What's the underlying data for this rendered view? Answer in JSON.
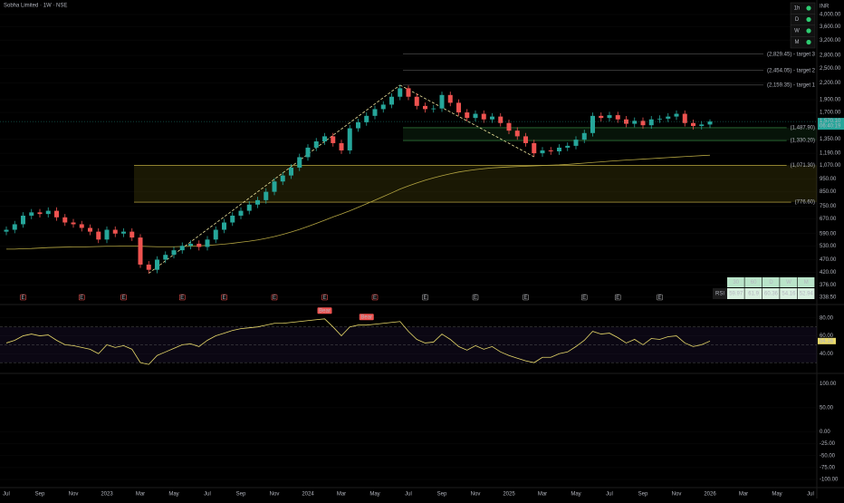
{
  "chart_data": [
    {
      "type": "candlestick",
      "title": "Sobha Limited · 1W · NSE",
      "currency": "INR",
      "log_scale": true,
      "categories": [
        "Jul",
        null,
        null,
        null,
        "Sep",
        null,
        null,
        null,
        "Nov",
        null,
        null,
        null,
        "2023",
        null,
        null,
        null,
        "Mar",
        null,
        null,
        null,
        "May",
        null,
        null,
        null,
        "Jul",
        null,
        null,
        null,
        "Sep",
        null,
        null,
        null,
        "Nov",
        null,
        null,
        null,
        "2024",
        null,
        null,
        null,
        "Mar",
        null,
        null,
        null,
        "May",
        null,
        null,
        null,
        "Jul",
        null,
        null,
        null,
        "Sep",
        null,
        null,
        null,
        "Nov",
        null,
        null,
        null,
        "2025",
        null,
        null,
        null,
        "Mar",
        null,
        null,
        null,
        "May",
        null,
        null,
        null,
        "Jul",
        null,
        null,
        null,
        "Sep",
        null,
        null,
        null,
        "Nov",
        null,
        null,
        null,
        "2026",
        null,
        null,
        null,
        "Mar",
        null,
        null,
        null,
        "May",
        null,
        null,
        null,
        "Jul"
      ],
      "open": [
        600,
        610,
        640,
        690,
        710,
        700,
        720,
        680,
        650,
        640,
        620,
        600,
        560,
        610,
        590,
        600,
        570,
        450,
        430,
        470,
        490,
        510,
        530,
        540,
        525,
        560,
        610,
        650,
        690,
        720,
        760,
        790,
        850,
        930,
        980,
        1050,
        1150,
        1250,
        1320,
        1380,
        1300,
        1220,
        1480,
        1560,
        1650,
        1750,
        1820,
        1950,
        2100,
        1950,
        1800,
        1750,
        1760,
        1980,
        1850,
        1700,
        1620,
        1680,
        1600,
        1640,
        1550,
        1450,
        1380,
        1300,
        1190,
        1220,
        1210,
        1250,
        1270,
        1340,
        1420,
        1650,
        1620,
        1660,
        1600,
        1540,
        1580,
        1520,
        1600,
        1610,
        1640,
        1680,
        1550,
        1510,
        1530,
        null,
        null,
        null,
        null,
        null,
        null,
        null,
        null,
        null,
        null,
        null,
        null
      ],
      "high": [
        628,
        659,
        711,
        731,
        731,
        742,
        742,
        700,
        670,
        659,
        639,
        618,
        628,
        628,
        618,
        618,
        587,
        464,
        484,
        505,
        525,
        546,
        556,
        556,
        577,
        628,
        670,
        711,
        742,
        783,
        814,
        876,
        958,
        1009,
        1082,
        1185,
        1288,
        1360,
        1421,
        1421,
        1339,
        1524,
        1607,
        1700,
        1803,
        1875,
        2009,
        2159,
        2150,
        2009,
        1854,
        1813,
        2039,
        2039,
        1906,
        1751,
        1730,
        1730,
        1689,
        1689,
        1597,
        1494,
        1421,
        1339,
        1257,
        1257,
        1288,
        1308,
        1380,
        1463,
        1700,
        1700,
        1710,
        1710,
        1648,
        1627,
        1627,
        1648,
        1658,
        1689,
        1730,
        1730,
        1597,
        1576,
        1600,
        null,
        null,
        null,
        null,
        null,
        null,
        null,
        null,
        null,
        null,
        null,
        null
      ],
      "low": [
        582,
        592,
        621,
        669,
        679,
        679,
        660,
        631,
        621,
        601,
        582,
        543,
        543,
        572,
        572,
        553,
        437,
        417,
        417,
        456,
        475,
        495,
        514,
        509,
        509,
        543,
        592,
        631,
        669,
        698,
        737,
        766,
        825,
        902,
        951,
        1019,
        1116,
        1213,
        1280,
        1261,
        1183,
        1183,
        1436,
        1513,
        1601,
        1698,
        1765,
        1892,
        1892,
        1746,
        1698,
        1698,
        1707,
        1795,
        1649,
        1571,
        1571,
        1552,
        1552,
        1504,
        1407,
        1339,
        1261,
        1154,
        1154,
        1174,
        1174,
        1213,
        1232,
        1300,
        1377,
        1571,
        1571,
        1552,
        1494,
        1494,
        1474,
        1474,
        1552,
        1562,
        1591,
        1504,
        1465,
        1465,
        1484,
        null,
        null,
        null,
        null,
        null,
        null,
        null,
        null,
        null,
        null,
        null,
        null
      ],
      "close": [
        610,
        640,
        690,
        710,
        700,
        720,
        680,
        650,
        640,
        620,
        600,
        560,
        610,
        590,
        600,
        570,
        450,
        430,
        470,
        490,
        510,
        530,
        540,
        525,
        560,
        610,
        650,
        690,
        720,
        760,
        790,
        850,
        930,
        980,
        1050,
        1150,
        1250,
        1320,
        1380,
        1300,
        1220,
        1480,
        1560,
        1650,
        1750,
        1820,
        1950,
        2100,
        1950,
        1800,
        1750,
        1760,
        1980,
        1850,
        1700,
        1620,
        1680,
        1600,
        1640,
        1550,
        1450,
        1380,
        1300,
        1190,
        1220,
        1210,
        1250,
        1270,
        1340,
        1420,
        1650,
        1620,
        1660,
        1600,
        1540,
        1580,
        1520,
        1600,
        1610,
        1640,
        1680,
        1550,
        1510,
        1530,
        1570.1,
        null,
        null,
        null,
        null,
        null,
        null,
        null,
        null,
        null,
        null,
        null,
        null
      ],
      "color_up": "#26a69a",
      "color_down": "#ef5350",
      "ma_color": "#b5a642",
      "ma_values": [
        515,
        515,
        517,
        518,
        520,
        522,
        523,
        524,
        525,
        525,
        526,
        527,
        528,
        528,
        529,
        529,
        528,
        527,
        526,
        526,
        526,
        527,
        528,
        530,
        532,
        535,
        538,
        542,
        547,
        552,
        558,
        566,
        575,
        586,
        598,
        612,
        628,
        645,
        663,
        682,
        700,
        720,
        742,
        765,
        790,
        815,
        842,
        870,
        895,
        918,
        940,
        960,
        978,
        995,
        1010,
        1022,
        1032,
        1040,
        1047,
        1052,
        1056,
        1060,
        1063,
        1066,
        1070,
        1072,
        1075,
        1080,
        1086,
        1092,
        1098,
        1104,
        1110,
        1116,
        1121,
        1126,
        1131,
        1136,
        1141,
        1146,
        1151,
        1156,
        1161,
        1166,
        1170,
        null,
        null,
        null,
        null,
        null,
        null,
        null,
        null,
        null,
        null,
        null,
        null
      ],
      "events": [
        null,
        null,
        "E",
        null,
        null,
        null,
        null,
        null,
        null,
        "E",
        null,
        null,
        null,
        null,
        "E",
        null,
        null,
        null,
        null,
        null,
        null,
        "E",
        null,
        null,
        null,
        null,
        "E",
        null,
        null,
        null,
        null,
        null,
        "E",
        null,
        null,
        null,
        null,
        null,
        "E",
        null,
        null,
        null,
        null,
        null,
        "E",
        null,
        null,
        null,
        null,
        null,
        "E",
        null,
        null,
        null,
        null,
        null,
        "E",
        null,
        null,
        null,
        null,
        null,
        "E",
        null,
        null,
        null,
        null,
        null,
        null,
        "E",
        null,
        null,
        null,
        "E",
        null,
        null,
        null,
        null,
        "E",
        null,
        null,
        null,
        null,
        null,
        null,
        null,
        null,
        null,
        null,
        null,
        null,
        null,
        null,
        null,
        null,
        null,
        null
      ],
      "ylim": [
        320,
        4540
      ],
      "yticks": [
        {
          "value": 4000,
          "label": "4,000.00"
        },
        {
          "value": 3600,
          "label": "3,600.00"
        },
        {
          "value": 3200,
          "label": "3,200.00"
        },
        {
          "value": 2800,
          "label": "2,800.00"
        },
        {
          "value": 2500,
          "label": "2,500.00"
        },
        {
          "value": 2200,
          "label": "2,200.00"
        },
        {
          "value": 1900,
          "label": "1,900.00"
        },
        {
          "value": 1700,
          "label": "1,700.00"
        },
        {
          "value": 1350,
          "label": "1,350.00"
        },
        {
          "value": 1190,
          "label": "1,190.00"
        },
        {
          "value": 1070,
          "label": "1,070.00"
        },
        {
          "value": 950,
          "label": "950.00"
        },
        {
          "value": 850,
          "label": "850.00"
        },
        {
          "value": 750,
          "label": "750.00"
        },
        {
          "value": 670,
          "label": "670.00"
        },
        {
          "value": 590,
          "label": "590.00"
        },
        {
          "value": 530,
          "label": "530.00"
        },
        {
          "value": 470,
          "label": "470.00"
        },
        {
          "value": 420,
          "label": "420.00"
        },
        {
          "value": 376,
          "label": "376.00"
        },
        {
          "value": 338.5,
          "label": "338.50"
        }
      ],
      "levels": [
        {
          "value": 2829.45,
          "label": "(2,829.45) - target 3",
          "color": "#e8d44d"
        },
        {
          "value": 2454.05,
          "label": "(2,454.05) - target 2",
          "color": "#e8d44d"
        },
        {
          "value": 2159.35,
          "label": "(2,159.35) - target 1",
          "color": "#e8d44d"
        },
        {
          "value": 1487.9,
          "label": "(1,487.90)",
          "color": "#3f9a4a"
        },
        {
          "value": 1330.2,
          "label": "(1,330.20)",
          "color": "#3f9a4a"
        },
        {
          "value": 1071.3,
          "label": "(1,071.30)",
          "color": "#d8c24a"
        },
        {
          "value": 776.6,
          "label": "(776.60)",
          "color": "#d8c24a"
        }
      ],
      "last_price_label": "1,570.10",
      "countdown": "06:40:19",
      "timeframes": [
        "1h",
        "D",
        "W",
        "M"
      ]
    },
    {
      "type": "line",
      "color": "#e8d96a",
      "values": [
        52,
        55,
        60,
        62,
        60,
        61,
        55,
        50,
        49,
        47,
        45,
        40,
        50,
        47,
        49,
        45,
        30,
        28,
        38,
        42,
        46,
        50,
        51,
        48,
        55,
        60,
        63,
        66,
        68,
        69,
        70,
        72,
        74,
        74,
        75,
        76,
        77,
        78,
        79,
        70,
        60,
        70,
        72,
        72,
        73,
        74,
        75,
        76,
        65,
        56,
        52,
        53,
        62,
        56,
        48,
        44,
        49,
        45,
        48,
        42,
        38,
        35,
        32,
        30,
        36,
        36,
        40,
        42,
        48,
        55,
        65,
        62,
        63,
        58,
        52,
        56,
        50,
        57,
        56,
        59,
        60,
        52,
        48,
        50,
        54.16,
        null,
        null,
        null,
        null,
        null,
        null,
        null,
        null,
        null,
        null,
        null,
        null
      ],
      "labels": [
        null,
        null,
        null,
        null,
        null,
        null,
        null,
        null,
        null,
        null,
        null,
        null,
        null,
        null,
        null,
        null,
        null,
        null,
        null,
        null,
        null,
        null,
        null,
        null,
        null,
        null,
        null,
        null,
        null,
        null,
        null,
        null,
        null,
        null,
        null,
        null,
        null,
        null,
        "Bear",
        null,
        null,
        null,
        null,
        "Bear",
        null,
        null,
        null,
        null,
        null,
        null,
        null,
        null,
        null,
        null,
        null,
        null,
        null,
        null,
        null,
        null,
        null,
        null,
        null,
        null,
        null,
        null,
        null,
        null,
        null,
        null,
        null,
        null,
        null,
        null,
        null,
        null,
        null,
        null,
        null,
        null,
        null,
        null,
        null,
        null,
        null,
        null,
        null,
        null,
        null,
        null,
        null,
        null,
        null,
        null,
        null,
        null,
        null
      ],
      "band_lines": [
        70,
        50,
        30
      ],
      "ylim": [
        19,
        94
      ],
      "yticks": [
        {
          "value": 80,
          "label": "80.00"
        },
        {
          "value": 60,
          "label": "60.00"
        },
        {
          "value": 40,
          "label": "40.00"
        }
      ],
      "last_value_label": "54.16",
      "table": {
        "headers": [
          "30",
          "60",
          "D",
          "W",
          "M"
        ],
        "row_label": "RSI",
        "values": [
          59.97,
          61.9,
          60.36,
          54.16,
          52.94
        ]
      }
    },
    {
      "type": "line",
      "ylim": [
        -115,
        120
      ],
      "yticks": [
        {
          "value": 100,
          "label": "100.00"
        },
        {
          "value": 50,
          "label": "50.00"
        },
        {
          "value": 0,
          "label": "0.00"
        },
        {
          "value": -25,
          "label": "-25.00"
        },
        {
          "value": -50,
          "label": "-50.00"
        },
        {
          "value": -75,
          "label": "-75.00"
        },
        {
          "value": -100,
          "label": "-100.00"
        }
      ]
    }
  ]
}
